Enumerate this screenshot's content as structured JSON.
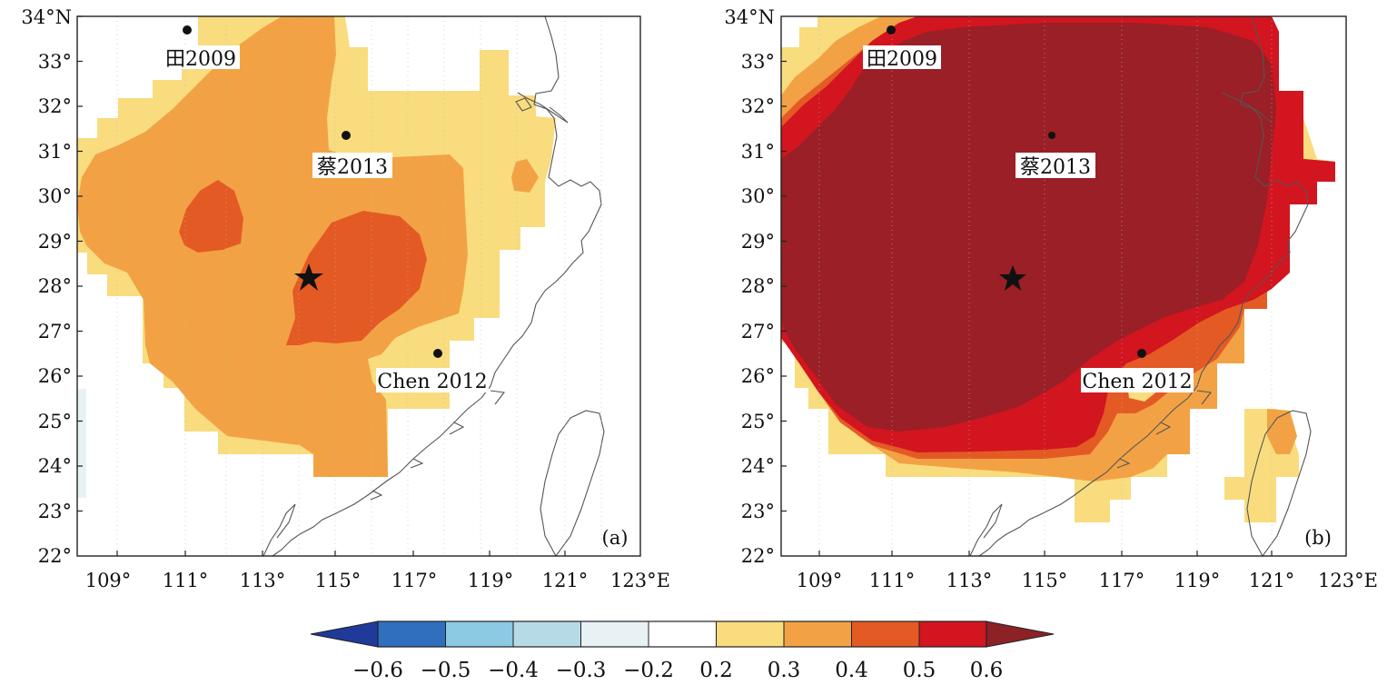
{
  "panels": [
    {
      "id": "a",
      "panel_label": "(a)",
      "y_ticks": [
        "22°",
        "23°",
        "24°",
        "25°",
        "26°",
        "27°",
        "28°",
        "29°",
        "30°",
        "31°",
        "32°",
        "33°",
        "34°N"
      ],
      "x_ticks": [
        "109°",
        "111°",
        "113°",
        "115°",
        "117°",
        "119°",
        "121°",
        "123°E"
      ],
      "sites": [
        {
          "label": "田2009"
        },
        {
          "label": "蔡2013"
        },
        {
          "label": "Chen 2012"
        }
      ]
    },
    {
      "id": "b",
      "panel_label": "(b)",
      "y_ticks": [
        "22°",
        "23°",
        "24°",
        "25°",
        "26°",
        "27°",
        "28°",
        "29°",
        "30°",
        "31°",
        "32°",
        "33°",
        "34°N"
      ],
      "x_ticks": [
        "109°",
        "111°",
        "113°",
        "115°",
        "117°",
        "119°",
        "121°",
        "123°E"
      ],
      "sites": [
        {
          "label": "田2009"
        },
        {
          "label": "蔡2013"
        },
        {
          "label": "Chen 2012"
        }
      ]
    }
  ],
  "map_extent": {
    "lon": [
      108,
      123
    ],
    "lat": [
      22,
      34
    ]
  },
  "colorbar": {
    "ticks": [
      "−0.6",
      "−0.5",
      "−0.4",
      "−0.3",
      "−0.2",
      "0.2",
      "0.3",
      "0.4",
      "0.5",
      "0.6"
    ],
    "colors": [
      "#1f3a9a",
      "#2f6fbd",
      "#8cc9e3",
      "#b7dbe6",
      "#e8f2f4",
      "#ffffff",
      "#f8dc7e",
      "#f2a244",
      "#e45a24",
      "#d2151f",
      "#8c2226"
    ]
  }
}
